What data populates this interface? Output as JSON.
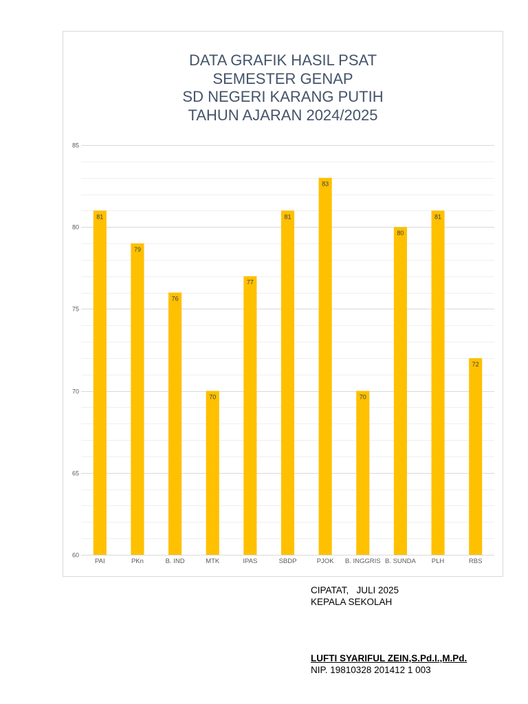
{
  "chart_data": {
    "type": "bar",
    "title": [
      "DATA GRAFIK HASIL PSAT",
      "SEMESTER GENAP",
      "SD NEGERI KARANG PUTIH",
      "TAHUN AJARAN 2024/2025"
    ],
    "categories": [
      "PAI",
      "PKn",
      "B. IND",
      "MTK",
      "IPAS",
      "SBDP",
      "PJOK",
      "B. INGGRIS",
      "B. SUNDA",
      "PLH",
      "RBS"
    ],
    "values": [
      81,
      79,
      76,
      70,
      77,
      81,
      83,
      70,
      80,
      81,
      72
    ],
    "ylim": [
      60,
      85
    ],
    "yticks": [
      60,
      65,
      70,
      75,
      80,
      85
    ],
    "minor_grid_step": 1,
    "grid": true,
    "data_labels": true,
    "bar_color": "#FFC000"
  },
  "signature": {
    "place_date": "CIPATAT,   JULI 2025",
    "position": "KEPALA SEKOLAH",
    "name": "LUFTI SYARIFUL ZEIN,S.Pd.I.,M.Pd.",
    "nip": "NIP. 19810328 201412 1 003"
  }
}
